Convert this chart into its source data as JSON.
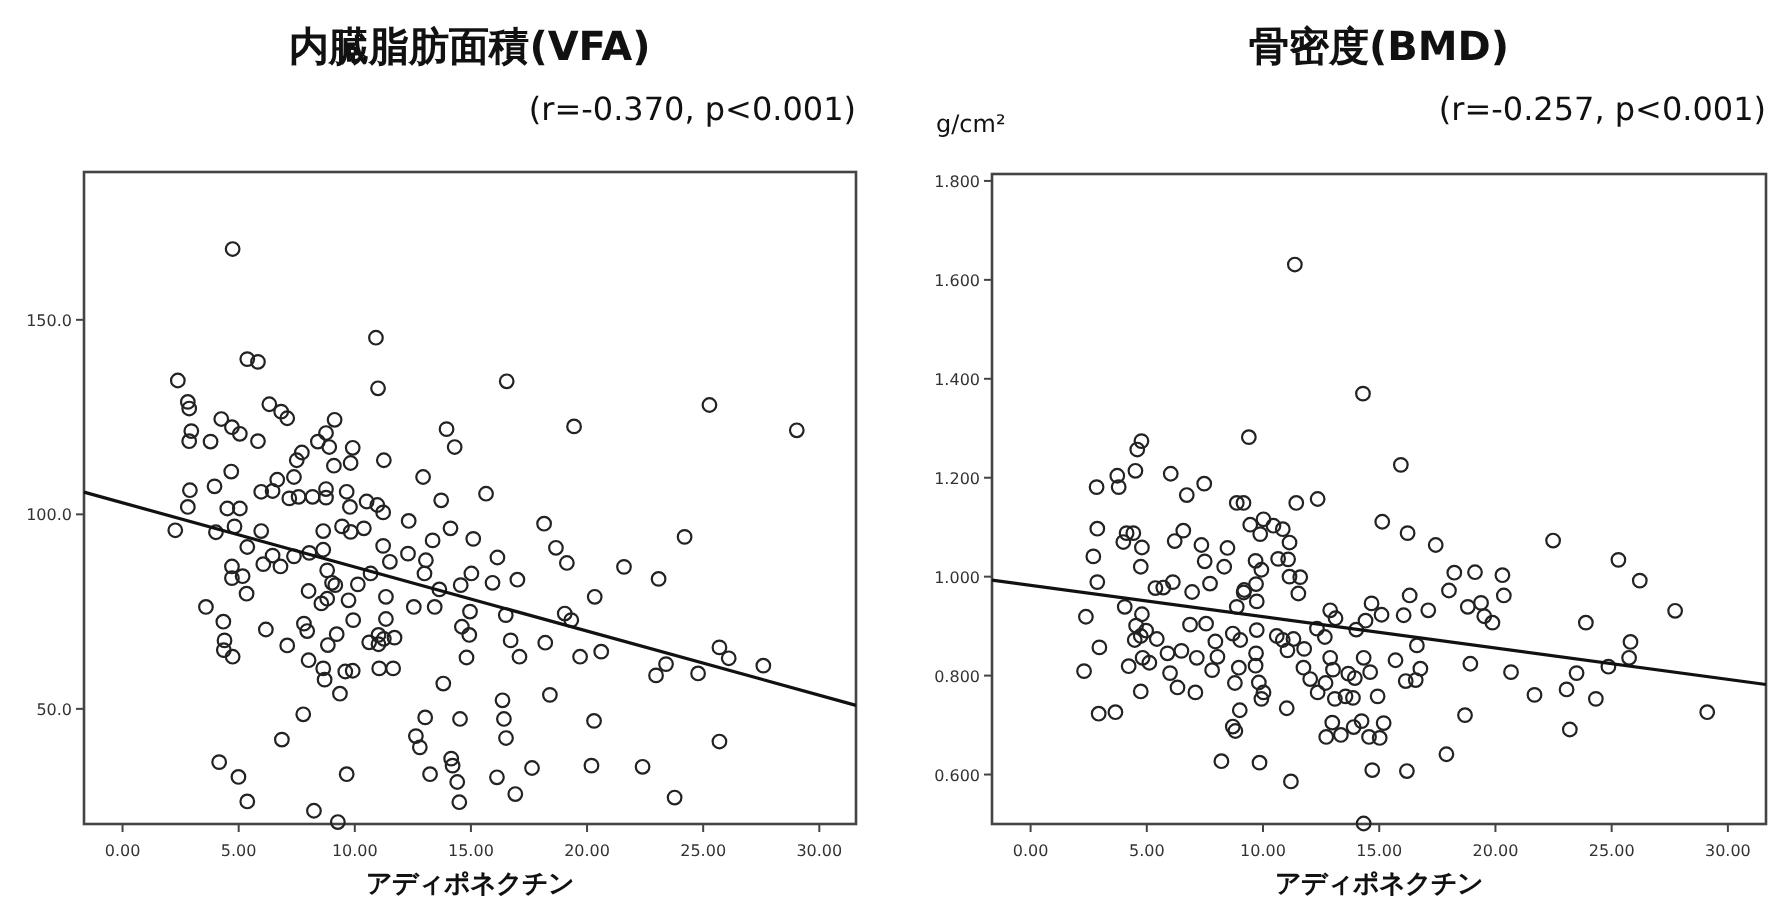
{
  "chart_data": [
    {
      "type": "scatter",
      "title": "内臓脂肪面積(VFA)",
      "subtitle": "(r=-0.370, p<0.001)",
      "xlabel": "アディポネクチン",
      "xlim": [
        -1.66,
        31.58
      ],
      "ylim": [
        20.4,
        188
      ],
      "xticks": [
        {
          "value": 0,
          "label": "0.00"
        },
        {
          "value": 5,
          "label": "5.00"
        },
        {
          "value": 10,
          "label": "10.00"
        },
        {
          "value": 15,
          "label": "15.00"
        },
        {
          "value": 20,
          "label": "20.00"
        },
        {
          "value": 25,
          "label": "25.00"
        },
        {
          "value": 30,
          "label": "30.00"
        }
      ],
      "yticks": [
        {
          "value": 50,
          "label": "50.0"
        },
        {
          "value": 100,
          "label": "100.0"
        },
        {
          "value": 150,
          "label": "150.0"
        }
      ],
      "series": [
        {
          "marker": "circle",
          "color": "#222222",
          "x": [
            4.74,
            10.91,
            5.37,
            5.83,
            2.38,
            11.0,
            16.54,
            25.27,
            19.44,
            29.03,
            13.95,
            14.3,
            2.81,
            2.87,
            2.96,
            2.87,
            3.79,
            4.25,
            4.71,
            5.05,
            5.83,
            6.32,
            6.83,
            7.09,
            9.13,
            8.76,
            8.41,
            8.9,
            9.91,
            9.1,
            7.72,
            7.5,
            4.68,
            7.38,
            6.66,
            3.96,
            2.9,
            5.97,
            6.46,
            7.18,
            7.58,
            8.18,
            8.76,
            8.76,
            9.65,
            9.82,
            11.25,
            12.94,
            15.65,
            2.81,
            4.51,
            5.05,
            2.27,
            4.02,
            4.82,
            5.97,
            5.37,
            4.71,
            4.71,
            5.17,
            5.34,
            6.06,
            6.46,
            6.8,
            7.38,
            8.04,
            8.64,
            8.64,
            9.45,
            9.82,
            9.79,
            10.51,
            10.97,
            11.22,
            12.32,
            12.29,
            11.22,
            10.13,
            10.68,
            8.81,
            9.02,
            8.01,
            8.81,
            8.56,
            9.16,
            3.59,
            4.34,
            4.39,
            4.36,
            4.74,
            6.17,
            7.09,
            7.81,
            7.95,
            8.84,
            9.22,
            8.01,
            8.64,
            8.7,
            9.36,
            9.59,
            9.91,
            10.62,
            11.02,
            11.02,
            11.05,
            11.34,
            11.34,
            11.71,
            11.65,
            12.54,
            13.44,
            13.0,
            13.35,
            13.64,
            14.12,
            13.72,
            13.06,
            14.56,
            15.02,
            15.1,
            14.61,
            14.93,
            14.96,
            14.81,
            13.81,
            13.03,
            12.63,
            12.8,
            13.24,
            14.15,
            14.21,
            14.41,
            14.5,
            14.53,
            16.12,
            16.36,
            16.42,
            16.51,
            16.91,
            17.63,
            18.4,
            18.2,
            16.5,
            16.71,
            17.09,
            17.0,
            16.14,
            15.93,
            18.15,
            18.66,
            19.13,
            19.04,
            19.32,
            19.7,
            20.61,
            20.33,
            20.3,
            20.19,
            21.59,
            23.08,
            24.2,
            22.39,
            23.77,
            22.97,
            23.4,
            24.78,
            25.7,
            26.1,
            25.7,
            27.59,
            9.27,
            8.24,
            9.65,
            7.78,
            6.86,
            4.16,
            4.99,
            5.37,
            10.39,
            11.51,
            11.25,
            9.73,
            9.93
          ],
          "values": [
            168.2,
            145.4,
            139.9,
            139.2,
            134.4,
            132.4,
            134.2,
            128.1,
            122.6,
            121.6,
            121.9,
            117.3,
            128.9,
            127.2,
            121.4,
            118.8,
            118.7,
            124.5,
            122.4,
            120.7,
            118.8,
            128.3,
            126.4,
            124.7,
            124.3,
            120.9,
            118.7,
            117.3,
            117.1,
            112.5,
            115.9,
            113.9,
            111.0,
            109.6,
            108.9,
            107.2,
            106.2,
            105.8,
            106.0,
            104.1,
            104.5,
            104.5,
            106.5,
            104.3,
            105.8,
            113.2,
            113.9,
            109.6,
            105.3,
            101.9,
            101.5,
            101.5,
            95.9,
            95.4,
            96.9,
            95.7,
            91.6,
            86.6,
            83.6,
            84.1,
            79.6,
            87.2,
            89.4,
            86.6,
            89.2,
            90.1,
            90.9,
            95.7,
            96.9,
            95.5,
            101.9,
            103.3,
            102.4,
            100.5,
            98.3,
            89.9,
            91.9,
            82.0,
            84.8,
            85.6,
            82.4,
            80.3,
            78.3,
            77.1,
            81.8,
            76.2,
            72.4,
            67.6,
            65.1,
            63.4,
            70.4,
            66.3,
            71.9,
            70.0,
            66.4,
            69.2,
            62.5,
            60.4,
            57.5,
            53.9,
            59.6,
            59.8,
            67.1,
            69.0,
            66.6,
            60.4,
            73.1,
            78.8,
            68.3,
            60.4,
            76.2,
            76.2,
            84.8,
            93.3,
            80.7,
            96.4,
            103.6,
            88.2,
            81.8,
            84.8,
            93.7,
            71.1,
            69.0,
            75.0,
            63.2,
            56.5,
            47.8,
            43.0,
            40.1,
            33.2,
            37.2,
            35.4,
            31.2,
            26.0,
            47.4,
            32.4,
            52.2,
            47.4,
            42.5,
            28.1,
            34.8,
            53.6,
            67.0,
            74.1,
            67.6,
            63.4,
            83.2,
            88.9,
            82.4,
            97.6,
            91.4,
            87.5,
            74.5,
            72.8,
            63.4,
            64.7,
            78.8,
            46.9,
            35.4,
            86.5,
            83.4,
            94.2,
            35.1,
            27.2,
            58.6,
            61.5,
            59.1,
            65.8,
            63.0,
            41.6,
            61.1,
            20.9,
            23.8,
            33.2,
            48.6,
            42.1,
            36.3,
            32.5,
            26.2,
            96.4,
            87.8,
            68.0,
            77.9,
            72.8
          ]
        },
        {
          "type": "line",
          "color": "#111111",
          "x": [
            -1.66,
            31.58
          ],
          "values": [
            105.7,
            50.9
          ]
        }
      ]
    },
    {
      "type": "scatter",
      "title": "骨密度(BMD)",
      "subtitle": "(r=-0.257, p<0.001)",
      "xlabel": "アディポネクチン",
      "ylabel": "g/cm²",
      "xlim": [
        -1.66,
        31.64
      ],
      "ylim": [
        0.5,
        1.814
      ],
      "xticks": [
        {
          "value": 0,
          "label": "0.00"
        },
        {
          "value": 5,
          "label": "5.00"
        },
        {
          "value": 10,
          "label": "10.00"
        },
        {
          "value": 15,
          "label": "15.00"
        },
        {
          "value": 20,
          "label": "20.00"
        },
        {
          "value": 25,
          "label": "25.00"
        },
        {
          "value": 30,
          "label": "30.00"
        }
      ],
      "yticks": [
        {
          "value": 0.6,
          "label": "0.600"
        },
        {
          "value": 0.8,
          "label": "0.800"
        },
        {
          "value": 1.0,
          "label": "1.000"
        },
        {
          "value": 1.2,
          "label": "1.200"
        },
        {
          "value": 1.4,
          "label": "1.400"
        },
        {
          "value": 1.6,
          "label": "1.600"
        },
        {
          "value": 1.8,
          "label": "1.800"
        }
      ],
      "series": [
        {
          "marker": "circle",
          "color": "#222222",
          "x": [
            11.37,
            14.3,
            9.39,
            15.93,
            4.77,
            4.59,
            3.73,
            4.51,
            2.84,
            3.79,
            6.03,
            6.72,
            7.47,
            8.87,
            9.16,
            11.43,
            12.35,
            15.13,
            9.45,
            10.02,
            10.45,
            10.85,
            11.14,
            2.87,
            4.13,
            4.42,
            4.79,
            3.99,
            2.7,
            2.87,
            4.74,
            6.2,
            6.57,
            7.35,
            7.49,
            8.47,
            8.33,
            9.17,
            9.68,
            9.93,
            9.88,
            10.65,
            11.08,
            11.14,
            11.6,
            11.52,
            16.22,
            17.43,
            18.23,
            19.12,
            20.3,
            20.36,
            22.48,
            25.29,
            26.21,
            27.73,
            23.89,
            18.0,
            18.81,
            19.38,
            19.52,
            19.87,
            16.31,
            17.11,
            16.05,
            14.67,
            15.1,
            12.89,
            13.12,
            12.32,
            14.01,
            14.41,
            9.7,
            9.73,
            9.19,
            8.87,
            7.72,
            6.95,
            6.12,
            5.71,
            5.37,
            4.05,
            2.38,
            4.79,
            4.54,
            4.74,
            5.43,
            4.97,
            4.48,
            2.96,
            2.3,
            4.22,
            4.82,
            5.11,
            5.89,
            6.0,
            6.32,
            6.49,
            6.86,
            7.55,
            7.15,
            7.09,
            7.95,
            7.81,
            8.04,
            8.7,
            9.02,
            8.96,
            9.73,
            9.7,
            9.68,
            8.79,
            9.82,
            10.02,
            9.0,
            9.93,
            8.7,
            8.81,
            8.21,
            9.85,
            11.2,
            11.02,
            10.59,
            10.85,
            11.05,
            11.31,
            11.77,
            11.74,
            12.35,
            12.66,
            12.89,
            13.01,
            12.69,
            13.09,
            12.72,
            12.98,
            13.35,
            13.67,
            13.95,
            13.55,
            14.33,
            14.61,
            13.87,
            13.9,
            14.24,
            14.56,
            15.02,
            15.19,
            14.93,
            14.7,
            14.33,
            15.7,
            16.14,
            16.57,
            16.77,
            16.62,
            16.19,
            17.89,
            18.69,
            18.92,
            20.67,
            21.68,
            23.06,
            23.2,
            23.49,
            24.32,
            24.86,
            25.75,
            25.81,
            29.11,
            2.93,
            3.65,
            4.74,
            12.03
          ],
          "values": [
            1.631,
            1.37,
            1.282,
            1.226,
            1.274,
            1.257,
            1.204,
            1.214,
            1.181,
            1.181,
            1.208,
            1.165,
            1.188,
            1.149,
            1.149,
            1.149,
            1.157,
            1.111,
            1.105,
            1.116,
            1.103,
            1.096,
            1.069,
            1.097,
            1.088,
            1.088,
            1.059,
            1.07,
            1.041,
            0.989,
            1.02,
            1.072,
            1.093,
            1.064,
            1.031,
            1.058,
            1.02,
            0.968,
            1.032,
            1.014,
            1.086,
            1.036,
            1.035,
            1.0,
            0.999,
            0.966,
            1.088,
            1.064,
            1.008,
            1.009,
            1.003,
            0.962,
            1.073,
            1.034,
            0.992,
            0.931,
            0.907,
            0.972,
            0.939,
            0.947,
            0.92,
            0.907,
            0.962,
            0.932,
            0.922,
            0.946,
            0.923,
            0.932,
            0.916,
            0.895,
            0.893,
            0.911,
            0.985,
            0.95,
            0.973,
            0.939,
            0.986,
            0.969,
            0.989,
            0.978,
            0.977,
            0.939,
            0.919,
            0.924,
            0.901,
            0.88,
            0.874,
            0.891,
            0.872,
            0.857,
            0.809,
            0.819,
            0.836,
            0.826,
            0.845,
            0.805,
            0.776,
            0.85,
            0.903,
            0.905,
            0.836,
            0.766,
            0.869,
            0.811,
            0.838,
            0.885,
            0.872,
            0.816,
            0.892,
            0.845,
            0.82,
            0.785,
            0.786,
            0.766,
            0.73,
            0.753,
            0.697,
            0.688,
            0.627,
            0.624,
            0.586,
            0.734,
            0.88,
            0.872,
            0.851,
            0.874,
            0.854,
            0.816,
            0.766,
            0.878,
            0.836,
            0.812,
            0.785,
            0.753,
            0.676,
            0.705,
            0.68,
            0.804,
            0.795,
            0.758,
            0.836,
            0.807,
            0.755,
            0.696,
            0.708,
            0.676,
            0.674,
            0.704,
            0.758,
            0.609,
            0.501,
            0.831,
            0.789,
            0.791,
            0.814,
            0.861,
            0.607,
            0.641,
            0.72,
            0.824,
            0.807,
            0.761,
            0.772,
            0.691,
            0.805,
            0.753,
            0.818,
            0.836,
            0.868,
            0.726,
            0.723,
            0.726,
            0.768,
            0.793
          ]
        },
        {
          "type": "line",
          "color": "#111111",
          "x": [
            -1.66,
            31.64
          ],
          "values": [
            0.993,
            0.782
          ]
        }
      ]
    }
  ]
}
